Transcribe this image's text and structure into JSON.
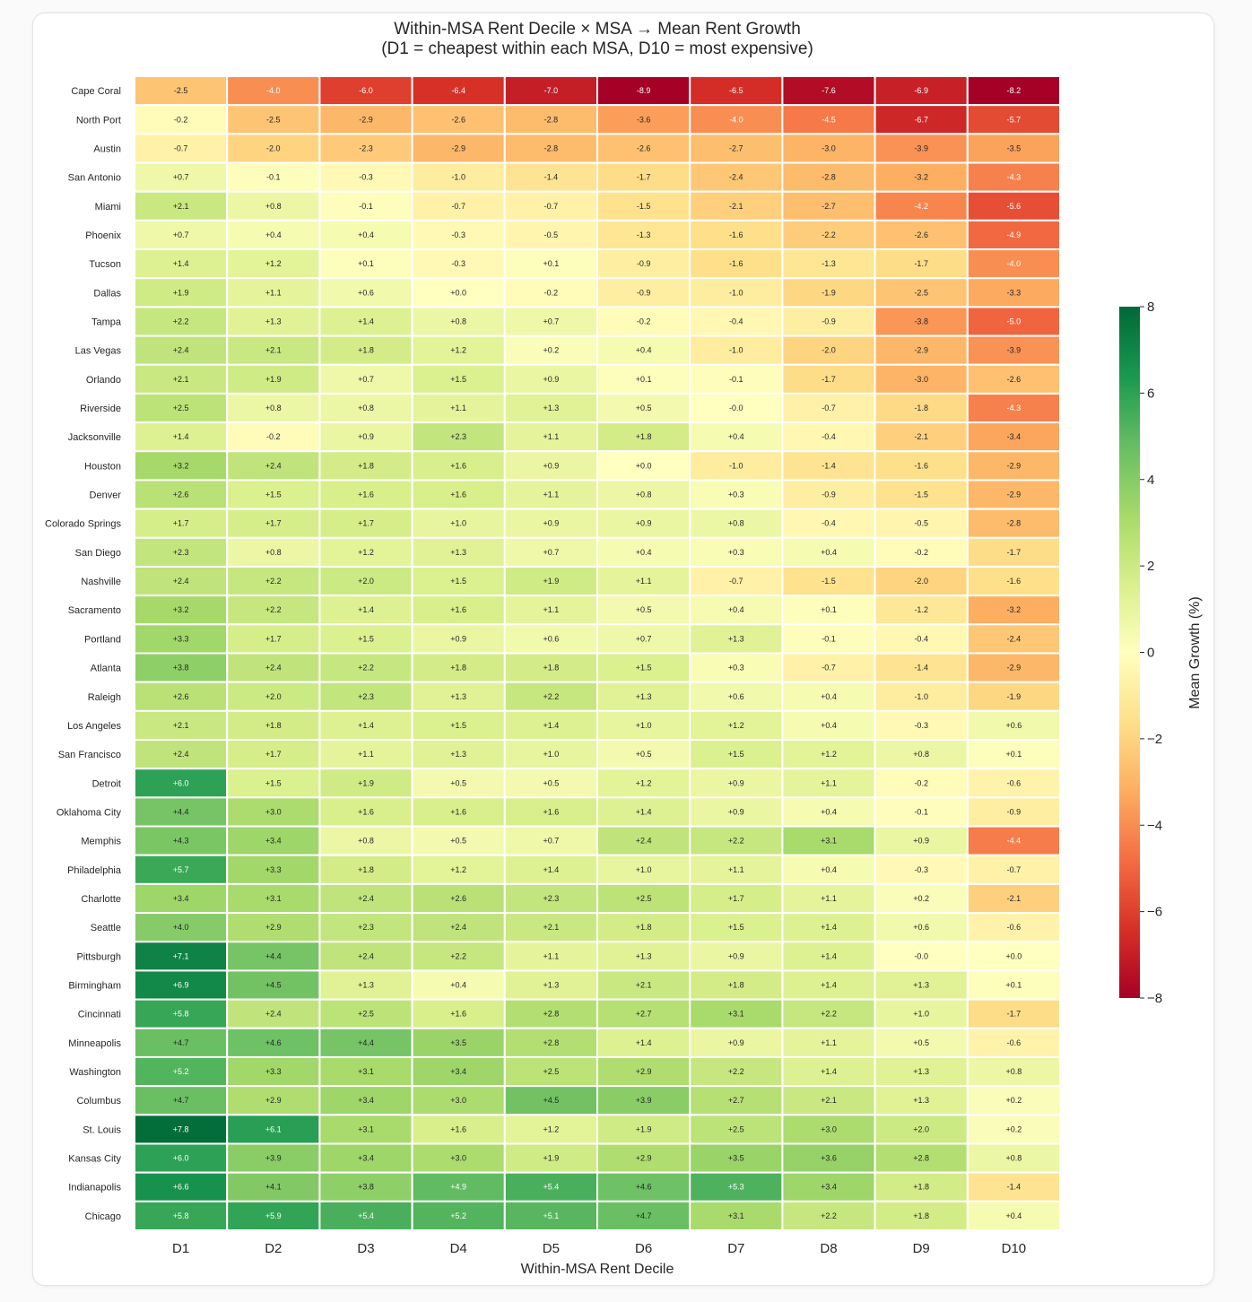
{
  "chart_data": {
    "type": "heatmap",
    "title": "Within-MSA Rent Decile × MSA → Mean Rent Growth",
    "subtitle": "(D1 = cheapest within each MSA, D10 = most expensive)",
    "xlabel": "Within-MSA Rent Decile",
    "ylabel": "",
    "colorbar_label": "Mean Growth (%)",
    "colormap": "RdYlGn",
    "vmin": -8,
    "vmax": 8,
    "colorbar_ticks": [
      "8",
      "6",
      "4",
      "2",
      "0",
      "−2",
      "−4",
      "−6",
      "−8"
    ],
    "colorbar_tick_values": [
      8,
      6,
      4,
      2,
      0,
      -2,
      -4,
      -6,
      -8
    ],
    "x": [
      "D1",
      "D2",
      "D3",
      "D4",
      "D5",
      "D6",
      "D7",
      "D8",
      "D9",
      "D10"
    ],
    "y": [
      "Cape Coral",
      "North Port",
      "Austin",
      "San Antonio",
      "Miami",
      "Phoenix",
      "Tucson",
      "Dallas",
      "Tampa",
      "Las Vegas",
      "Orlando",
      "Riverside",
      "Jacksonville",
      "Houston",
      "Denver",
      "Colorado Springs",
      "San Diego",
      "Nashville",
      "Sacramento",
      "Portland",
      "Atlanta",
      "Raleigh",
      "Los Angeles",
      "San Francisco",
      "Detroit",
      "Oklahoma City",
      "Memphis",
      "Philadelphia",
      "Charlotte",
      "Seattle",
      "Pittsburgh",
      "Birmingham",
      "Cincinnati",
      "Minneapolis",
      "Washington",
      "Columbus",
      "St. Louis",
      "Kansas City",
      "Indianapolis",
      "Chicago"
    ],
    "values": [
      [
        -2.5,
        -4.0,
        -6.0,
        -6.4,
        -7.0,
        -8.9,
        -6.5,
        -7.6,
        -6.9,
        -8.2
      ],
      [
        -0.2,
        -2.5,
        -2.9,
        -2.6,
        -2.8,
        -3.6,
        -4.0,
        -4.5,
        -6.7,
        -5.7
      ],
      [
        -0.7,
        -2.0,
        -2.3,
        -2.9,
        -2.8,
        -2.6,
        -2.7,
        -3.0,
        -3.9,
        -3.5
      ],
      [
        0.7,
        -0.1,
        -0.3,
        -1.0,
        -1.4,
        -1.7,
        -2.4,
        -2.8,
        -3.2,
        -4.3
      ],
      [
        2.1,
        0.8,
        -0.1,
        -0.7,
        -0.7,
        -1.5,
        -2.1,
        -2.7,
        -4.2,
        -5.6
      ],
      [
        0.7,
        0.4,
        0.4,
        -0.3,
        -0.5,
        -1.3,
        -1.6,
        -2.2,
        -2.6,
        -4.9
      ],
      [
        1.4,
        1.2,
        0.1,
        -0.3,
        0.1,
        -0.9,
        -1.6,
        -1.3,
        -1.7,
        -4.0
      ],
      [
        1.9,
        1.1,
        0.6,
        0.0,
        -0.2,
        -0.9,
        -1.0,
        -1.9,
        -2.5,
        -3.3
      ],
      [
        2.2,
        1.3,
        1.4,
        0.8,
        0.7,
        -0.2,
        -0.4,
        -0.9,
        -3.8,
        -5.0
      ],
      [
        2.4,
        2.1,
        1.8,
        1.2,
        0.2,
        0.4,
        -1.0,
        -2.0,
        -2.9,
        -3.9
      ],
      [
        2.1,
        1.9,
        0.7,
        1.5,
        0.9,
        0.1,
        -0.1,
        -1.7,
        -3.0,
        -2.6
      ],
      [
        2.5,
        0.8,
        0.8,
        1.1,
        1.3,
        0.5,
        -0.0,
        -0.7,
        -1.8,
        -4.3
      ],
      [
        1.4,
        -0.2,
        0.9,
        2.3,
        1.1,
        1.8,
        0.4,
        -0.4,
        -2.1,
        -3.4
      ],
      [
        3.2,
        2.4,
        1.8,
        1.6,
        0.9,
        0.0,
        -1.0,
        -1.4,
        -1.6,
        -2.9
      ],
      [
        2.6,
        1.5,
        1.6,
        1.6,
        1.1,
        0.8,
        0.3,
        -0.9,
        -1.5,
        -2.9
      ],
      [
        1.7,
        1.7,
        1.7,
        1.0,
        0.9,
        0.9,
        0.8,
        -0.4,
        -0.5,
        -2.8
      ],
      [
        2.3,
        0.8,
        1.2,
        1.3,
        0.7,
        0.4,
        0.3,
        0.4,
        -0.2,
        -1.7
      ],
      [
        2.4,
        2.2,
        2.0,
        1.5,
        1.9,
        1.1,
        -0.7,
        -1.5,
        -2.0,
        -1.6
      ],
      [
        3.2,
        2.2,
        1.4,
        1.6,
        1.1,
        0.5,
        0.4,
        0.1,
        -1.2,
        -3.2
      ],
      [
        3.3,
        1.7,
        1.5,
        0.9,
        0.6,
        0.7,
        1.3,
        -0.1,
        -0.4,
        -2.4
      ],
      [
        3.8,
        2.4,
        2.2,
        1.8,
        1.8,
        1.5,
        0.3,
        -0.7,
        -1.4,
        -2.9
      ],
      [
        2.6,
        2.0,
        2.3,
        1.3,
        2.2,
        1.3,
        0.6,
        0.4,
        -1.0,
        -1.9
      ],
      [
        2.1,
        1.8,
        1.4,
        1.5,
        1.4,
        1.0,
        1.2,
        0.4,
        -0.3,
        0.6
      ],
      [
        2.4,
        1.7,
        1.1,
        1.3,
        1.0,
        0.5,
        1.5,
        1.2,
        0.8,
        0.1
      ],
      [
        6.0,
        1.5,
        1.9,
        0.5,
        0.5,
        1.2,
        0.9,
        1.1,
        -0.2,
        -0.6
      ],
      [
        4.4,
        3.0,
        1.6,
        1.6,
        1.6,
        1.4,
        0.9,
        0.4,
        -0.1,
        -0.9
      ],
      [
        4.3,
        3.4,
        0.8,
        0.5,
        0.7,
        2.4,
        2.2,
        3.1,
        0.9,
        -4.4
      ],
      [
        5.7,
        3.3,
        1.8,
        1.2,
        1.4,
        1.0,
        1.1,
        0.4,
        -0.3,
        -0.7
      ],
      [
        3.4,
        3.1,
        2.4,
        2.6,
        2.3,
        2.5,
        1.7,
        1.1,
        0.2,
        -2.1
      ],
      [
        4.0,
        2.9,
        2.3,
        2.4,
        2.1,
        1.8,
        1.5,
        1.4,
        0.6,
        -0.6
      ],
      [
        7.1,
        4.4,
        2.4,
        2.2,
        1.1,
        1.3,
        0.9,
        1.4,
        -0.0,
        0.0
      ],
      [
        6.9,
        4.5,
        1.3,
        0.4,
        1.3,
        2.1,
        1.8,
        1.4,
        1.3,
        0.1
      ],
      [
        5.8,
        2.4,
        2.5,
        1.6,
        2.8,
        2.7,
        3.1,
        2.2,
        1.0,
        -1.7
      ],
      [
        4.7,
        4.6,
        4.4,
        3.5,
        2.8,
        1.4,
        0.9,
        1.1,
        0.5,
        -0.6
      ],
      [
        5.2,
        3.3,
        3.1,
        3.4,
        2.5,
        2.9,
        2.2,
        1.4,
        1.3,
        0.8
      ],
      [
        4.7,
        2.9,
        3.4,
        3.0,
        4.5,
        3.9,
        2.7,
        2.1,
        1.3,
        0.2
      ],
      [
        7.8,
        6.1,
        3.1,
        1.6,
        1.2,
        1.9,
        2.5,
        3.0,
        2.0,
        0.2
      ],
      [
        6.0,
        3.9,
        3.4,
        3.0,
        1.9,
        2.9,
        3.5,
        3.6,
        2.8,
        0.8
      ],
      [
        6.6,
        4.1,
        3.8,
        4.9,
        5.4,
        4.6,
        5.3,
        3.4,
        1.8,
        -1.4
      ],
      [
        5.8,
        5.9,
        5.4,
        5.2,
        5.1,
        4.7,
        3.1,
        2.2,
        1.8,
        0.4
      ]
    ],
    "grid": false,
    "legend": "colorbar-right"
  }
}
